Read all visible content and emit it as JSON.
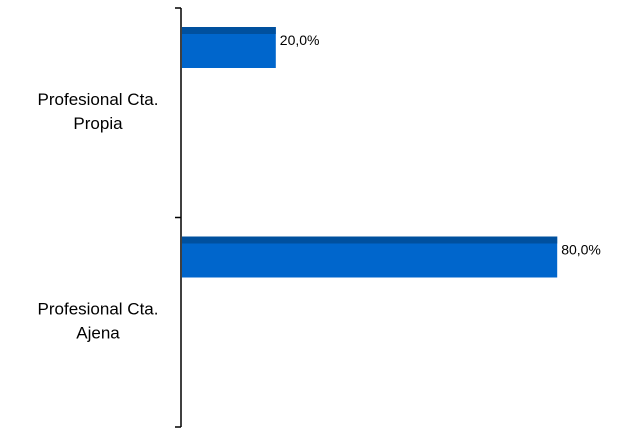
{
  "chart_data": {
    "type": "bar",
    "orientation": "horizontal",
    "categories": [
      {
        "lines": [
          "Profesional Cta.",
          "Propia"
        ]
      },
      {
        "lines": [
          "Profesional Cta.",
          "Ajena"
        ]
      }
    ],
    "values": [
      20.0,
      80.0
    ],
    "data_labels": [
      "20,0%",
      "80,0%"
    ],
    "xlim": [
      0,
      100
    ],
    "grid": false,
    "legend": "none",
    "title": "",
    "xlabel": "",
    "ylabel": ""
  },
  "colors": {
    "bar_fill": "#0066cc",
    "bar_top": "#00509e",
    "axis": "#000000"
  }
}
